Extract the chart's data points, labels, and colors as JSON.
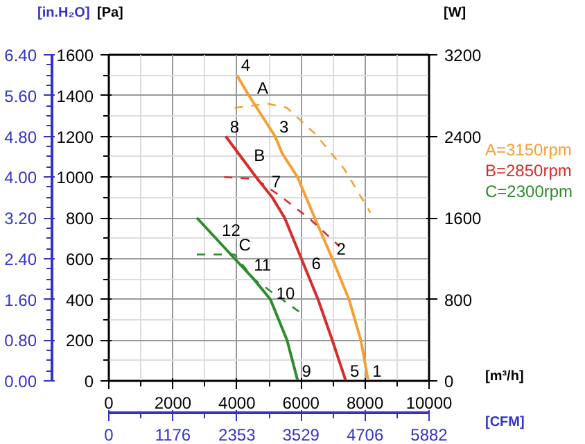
{
  "chart_data": {
    "type": "line",
    "xlabel": "[m³/h]",
    "ylabel": "[Pa]",
    "y2label": "[W]",
    "y3label": "[in.H₂O]",
    "x2label": "[CFM]",
    "xlim": [
      0,
      10000
    ],
    "xticks": [
      0,
      2000,
      4000,
      6000,
      8000,
      10000
    ],
    "ylim": [
      0,
      1600
    ],
    "yticks": [
      0,
      200,
      400,
      600,
      800,
      1000,
      1200,
      1400,
      1600
    ],
    "y2lim": [
      0,
      3200
    ],
    "y2ticks": [
      0,
      800,
      1600,
      2400,
      3200
    ],
    "y3lim": [
      0,
      6.4
    ],
    "y3ticks": [
      {
        "value": 0,
        "label": "0.00"
      },
      {
        "value": 0.8,
        "label": "0.80"
      },
      {
        "value": 1.6,
        "label": "1.60"
      },
      {
        "value": 2.4,
        "label": "2.40"
      },
      {
        "value": 3.2,
        "label": "3.20"
      },
      {
        "value": 4.0,
        "label": "4.00"
      },
      {
        "value": 4.8,
        "label": "4.80"
      },
      {
        "value": 5.6,
        "label": "5.60"
      },
      {
        "value": 6.4,
        "label": "6.40"
      }
    ],
    "x2lim": [
      0,
      5882
    ],
    "x2ticks": [
      0,
      1176,
      2353,
      3529,
      4706,
      5882
    ],
    "grid": true,
    "series": [
      {
        "name": "A=3150rpm",
        "color": "#f5a033",
        "line_style": "solid",
        "x": [
          4000,
          4375,
          5193,
          5415,
          5893,
          6430,
          6978,
          7500,
          7870,
          8100
        ],
        "values": [
          1500,
          1400,
          1200,
          1116,
          1000,
          800,
          600,
          400,
          200,
          0
        ]
      },
      {
        "name": "B=2850rpm",
        "color": "#d92b2b",
        "line_style": "solid",
        "x": [
          3650,
          4598,
          5104,
          5491,
          6012,
          6533,
          6978,
          7400
        ],
        "values": [
          1200,
          1000,
          900,
          800,
          600,
          400,
          200,
          0
        ]
      },
      {
        "name": "C=2300rpm",
        "color": "#2e8b2e",
        "line_style": "solid",
        "x": [
          2750,
          3929,
          4524,
          5045,
          5565,
          5900
        ],
        "values": [
          800,
          600,
          500,
          400,
          200,
          0
        ]
      },
      {
        "color": "#f5a033",
        "line_style": "dashed",
        "axis": "y2",
        "x": [
          3929,
          4970,
          5565,
          6458,
          7351,
          8170
        ],
        "values": [
          2680,
          2720,
          2680,
          2420,
          2080,
          1650
        ]
      },
      {
        "color": "#d92b2b",
        "line_style": "dashed",
        "axis": "y2",
        "x": [
          3600,
          4598,
          5415,
          6310,
          7202
        ],
        "values": [
          2000,
          1980,
          1800,
          1580,
          1320
        ]
      },
      {
        "color": "#2e8b2e",
        "line_style": "dashed",
        "axis": "y2",
        "x": [
          2750,
          3929,
          4524,
          5938
        ],
        "values": [
          1240,
          1240,
          1000,
          680
        ]
      }
    ],
    "annotations": [
      {
        "text": "1",
        "x": 8100,
        "y": 0
      },
      {
        "text": "2",
        "x": 6978,
        "y": 600
      },
      {
        "text": "3",
        "x": 5193,
        "y": 1200
      },
      {
        "text": "4",
        "x": 4000,
        "y": 1500
      },
      {
        "text": "5",
        "x": 7400,
        "y": 0
      },
      {
        "text": "6",
        "x": 6200,
        "y": 528
      },
      {
        "text": "7",
        "x": 4950,
        "y": 930
      },
      {
        "text": "8",
        "x": 3650,
        "y": 1200
      },
      {
        "text": "9",
        "x": 5900,
        "y": 0
      },
      {
        "text": "10",
        "x": 5100,
        "y": 380
      },
      {
        "text": "11",
        "x": 4400,
        "y": 520
      },
      {
        "text": "12",
        "x": 3400,
        "y": 690
      },
      {
        "text": "A",
        "x": 4500,
        "y": 1370
      },
      {
        "text": "B",
        "x": 4400,
        "y": 1040
      },
      {
        "text": "C",
        "x": 3929,
        "y": 600
      }
    ]
  }
}
